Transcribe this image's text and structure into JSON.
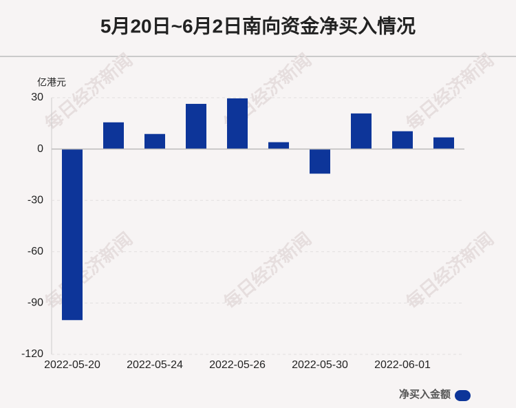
{
  "chart_data": {
    "type": "bar",
    "title": "5月20日~6月2日南向资金净买入情况",
    "y_axis_label": "亿港元",
    "watermark": "每日经济新闻",
    "categories": [
      "2022-05-20",
      null,
      "2022-05-24",
      null,
      "2022-05-26",
      null,
      "2022-05-30",
      null,
      "2022-06-01",
      null
    ],
    "series": [
      {
        "name": "净买入金额",
        "color": "#0d3599",
        "values": [
          -100,
          15.6,
          8.8,
          26.4,
          29.6,
          4,
          -14.4,
          20.8,
          10.4,
          6.8
        ]
      }
    ],
    "ylim": [
      -120,
      30
    ],
    "yticks": [
      -120,
      -90,
      -60,
      -30,
      0,
      30
    ],
    "grid": true,
    "legend": "bottom-right"
  }
}
